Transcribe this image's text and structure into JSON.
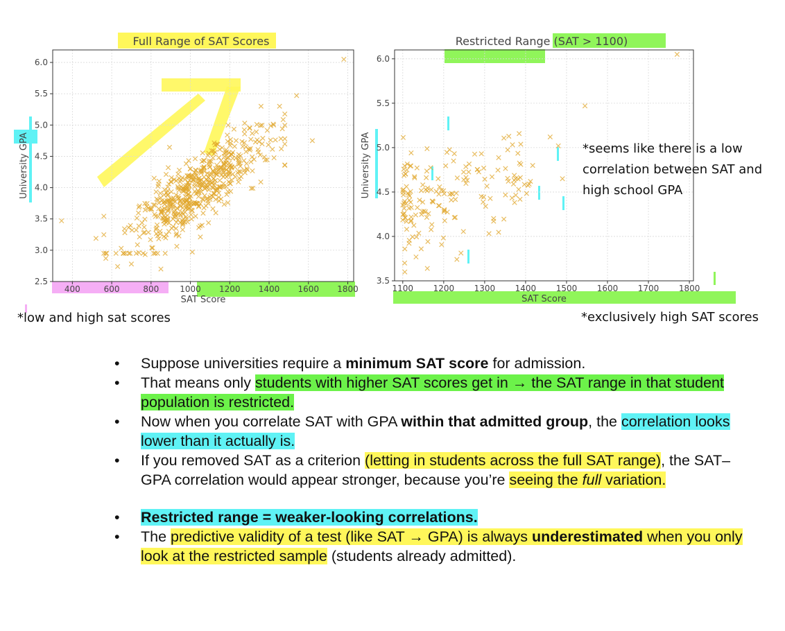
{
  "chart_data": [
    {
      "type": "scatter",
      "title": "Full Range of SAT Scores",
      "xlabel": "SAT Score",
      "ylabel": "University GPA",
      "xlim": [
        300,
        1830
      ],
      "ylim": [
        2.5,
        6.2
      ],
      "xticks": [
        400,
        600,
        800,
        1000,
        1200,
        1400,
        1600,
        1800
      ],
      "yticks": [
        2.5,
        3.0,
        3.5,
        4.0,
        4.5,
        5.0,
        5.5,
        6.0
      ],
      "grid": true,
      "marker": "x",
      "color": "#e0a52a",
      "points": {
        "outliers": [
          [
            1780,
            6.05
          ],
          [
            1540,
            5.47
          ],
          [
            1620,
            4.75
          ],
          [
            345,
            3.47
          ],
          [
            520,
            3.19
          ],
          [
            570,
            2.87
          ],
          [
            630,
            2.74
          ],
          [
            700,
            2.78
          ],
          [
            850,
            2.7
          ],
          [
            770,
            2.93
          ]
        ],
        "generated_cloud": {
          "n": 560,
          "x_mean": 1050,
          "x_sd": 185,
          "intercept_gpa": 1.75,
          "slope_per_point": 0.00215,
          "noise_sd": 0.28,
          "x_range": [
            560,
            1480
          ],
          "gpa_range": [
            2.95,
            5.3
          ]
        }
      }
    },
    {
      "type": "scatter",
      "title": "Restricted Range (SAT > 1100)",
      "xlabel": "SAT Score",
      "ylabel": "University GPA",
      "xlim": [
        1080,
        1810
      ],
      "ylim": [
        3.5,
        6.1
      ],
      "xticks": [
        1100,
        1200,
        1300,
        1400,
        1500,
        1600,
        1700,
        1800
      ],
      "yticks": [
        3.5,
        4.0,
        4.5,
        5.0,
        5.5,
        6.0
      ],
      "grid": true,
      "marker": "x",
      "color": "#e0a52a",
      "points": {
        "outliers": [
          [
            1770,
            6.05
          ],
          [
            1545,
            5.47
          ],
          [
            1105,
            3.6
          ],
          [
            1160,
            3.64
          ],
          [
            1145,
            3.86
          ],
          [
            1480,
            5.02
          ],
          [
            1490,
            4.65
          ],
          [
            1460,
            5.12
          ]
        ],
        "generated_cloud": {
          "n": 170,
          "x_min": 1100,
          "x_max": 1420,
          "gpa_mean": 4.4,
          "gpa_sd": 0.3,
          "gpa_range": [
            3.7,
            5.2
          ]
        }
      }
    }
  ],
  "annotations": {
    "left_note": "*low and high sat scores",
    "right_note_top": "*seems like there is a low correlation between SAT and high school GPA",
    "right_note_bottom": "*exclusively high SAT scores"
  },
  "bullet_glyph": "•",
  "bullets": {
    "b1_pre": "Suppose universities require a ",
    "b1_bold": "minimum SAT score",
    "b1_post": " for admission.",
    "b2_pre": "That means only ",
    "b2_hl": "students with higher SAT scores get in → the SAT range in that student population is restricted.",
    "b3_pre": "Now when you correlate SAT with GPA ",
    "b3_bold": "within that admitted group",
    "b3_mid": ", the ",
    "b3_hl": "correlation looks lower than it actually is.",
    "b4_pre": "If you removed SAT as a criterion ",
    "b4_hl": "(letting in students across the full SAT range)",
    "b4_mid": ", the SAT–GPA correlation would appear stronger, because you’re ",
    "b4_hl2a": "seeing the ",
    "b4_hl2_italic": "full",
    "b4_hl2b": " variation.",
    "b5_bold_hl": "Restricted range = weaker-looking correlations.",
    "b6_pre": "The ",
    "b6_hl_a": "predictive validity of a test (like SAT → GPA) is always ",
    "b6_hl_bold": "underestimated",
    "b6_hl_b": " when you only look at the restricted sample",
    "b6_post": " (students already admitted)."
  }
}
